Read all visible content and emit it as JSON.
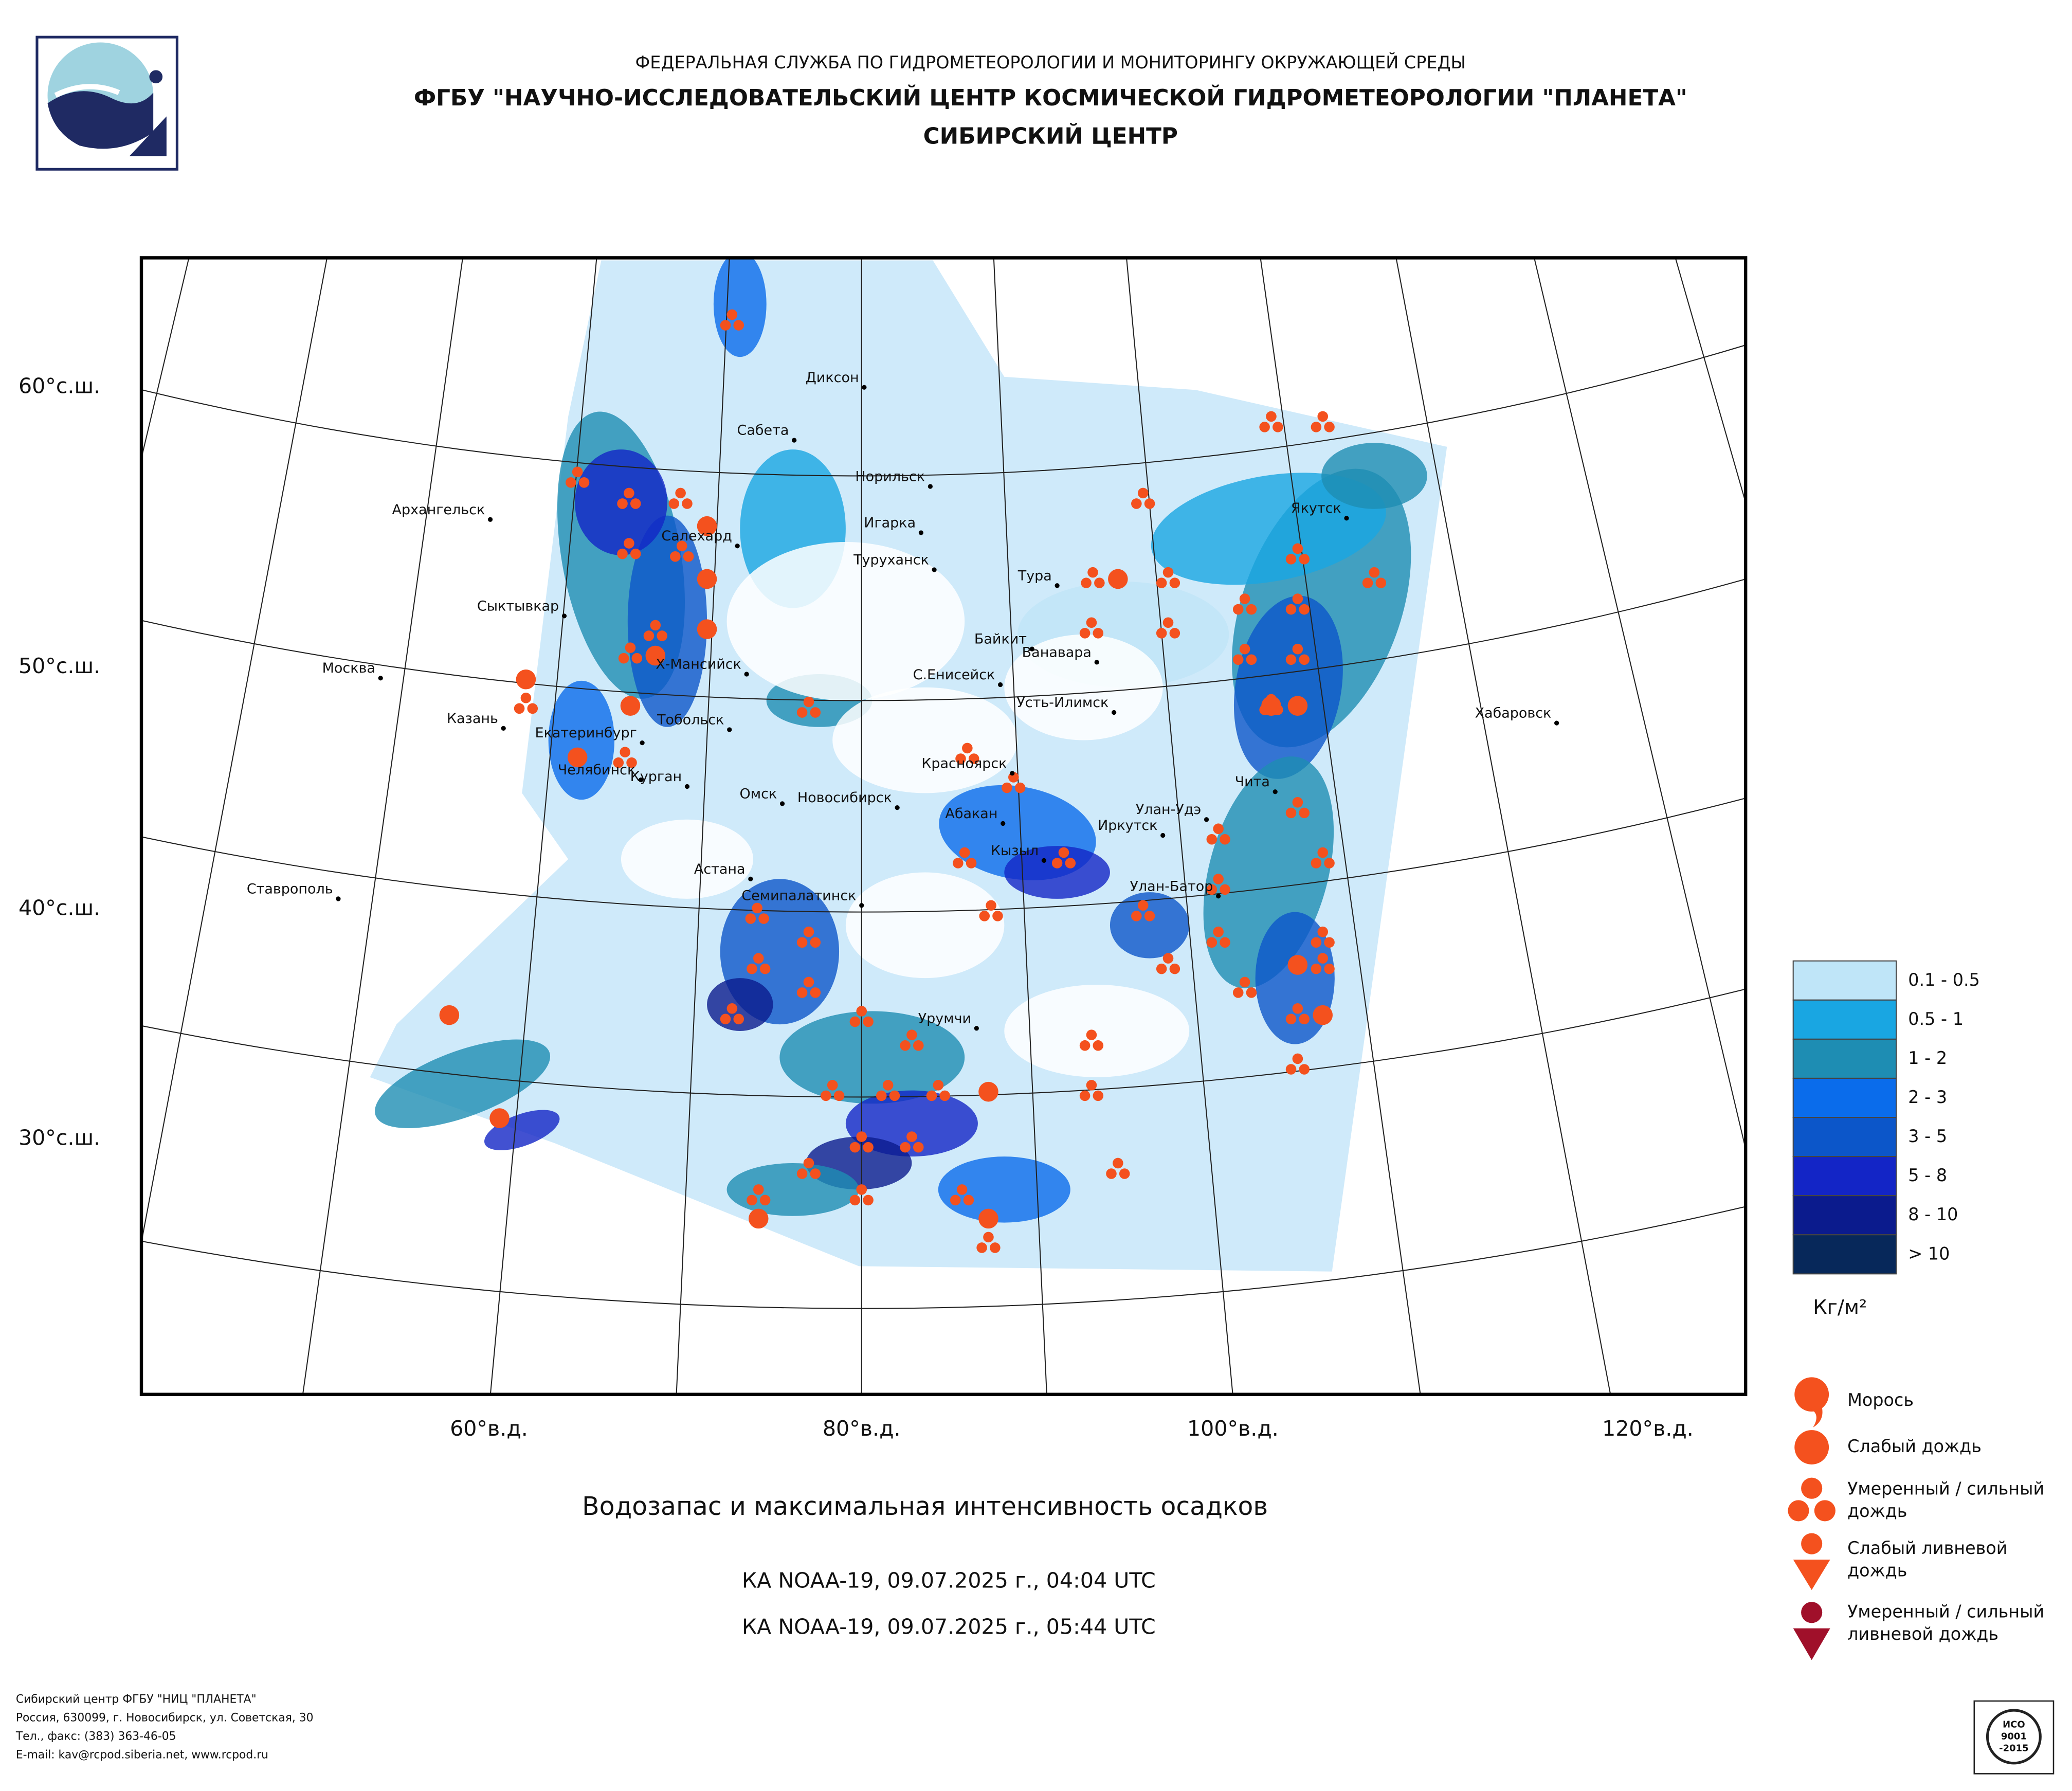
{
  "header": {
    "agency": "ФЕДЕРАЛЬНАЯ СЛУЖБА ПО ГИДРОМЕТЕОРОЛОГИИ И МОНИТОРИНГУ ОКРУЖАЮЩЕЙ СРЕДЫ",
    "center": "ФГБУ \"НАУЧНО-ИССЛЕДОВАТЕЛЬСКИЙ ЦЕНТР КОСМИЧЕСКОЙ ГИДРОМЕТЕОРОЛОГИИ \"ПЛАНЕТА\"",
    "branch": "СИБИРСКИЙ ЦЕНТР"
  },
  "map": {
    "lat_labels": [
      "60°с.ш.",
      "50°с.ш.",
      "40°с.ш.",
      "30°с.ш."
    ],
    "lon_labels": [
      "60°в.д.",
      "80°в.д.",
      "100°в.д.",
      "120°в.д."
    ],
    "cities": [
      "Диксон",
      "Сабета",
      "Норильск",
      "Архангельск",
      "Игарка",
      "Салехард",
      "Туруханск",
      "Тура",
      "Якутск",
      "Сыктывкар",
      "Байкит",
      "Ванавара",
      "Х-Мансийск",
      "Москва",
      "С.Енисейск",
      "Усть-Илимск",
      "Казань",
      "Тобольск",
      "Хабаровск",
      "Екатеринбург",
      "Челябинск",
      "Курган",
      "Красноярск",
      "Омск",
      "Новосибирск",
      "Чита",
      "Улан-Удэ",
      "Абакан",
      "Иркутск",
      "Кызыл",
      "Астана",
      "Ставрополь",
      "Улан-Батор",
      "Семипалатинск",
      "Урумчи"
    ]
  },
  "legend": {
    "water_classes": [
      "0.1 - 0.5",
      "0.5 - 1",
      "1 - 2",
      "2 - 3",
      "3 - 5",
      "5 - 8",
      "8 - 10",
      "> 10"
    ],
    "colors": [
      "#bfe5f8",
      "#19a6e2",
      "#1e8db3",
      "#0a6ceb",
      "#0c56c9",
      "#1325c6",
      "#0b1b8d",
      "#07285a"
    ],
    "unit": "Кг/м²",
    "precip_types": [
      [
        "Морось"
      ],
      [
        "Слабый дождь"
      ],
      [
        "Умеренный / сильный",
        "дождь"
      ],
      [
        "Слабый ливневой",
        "дождь"
      ],
      [
        "Умеренный / сильный",
        "ливневой дождь"
      ]
    ]
  },
  "caption": {
    "title": "Водозапас и максимальная интенсивность осадков",
    "passes": [
      "КА NOAA-19, 09.07.2025 г., 04:04 UTC",
      "КА NOAA-19, 09.07.2025 г., 05:44 UTC"
    ]
  },
  "footer": [
    "Сибирский центр ФГБУ \"НИЦ \"ПЛАНЕТА\"",
    "Россия, 630099, г. Новосибирск, ул. Советская, 30",
    "Тел., факс: (383) 363-46-05",
    "E-mail: kav@rcpod.siberia.net, www.rcpod.ru"
  ],
  "badge": [
    "ИСО",
    "9001",
    "-2015"
  ]
}
